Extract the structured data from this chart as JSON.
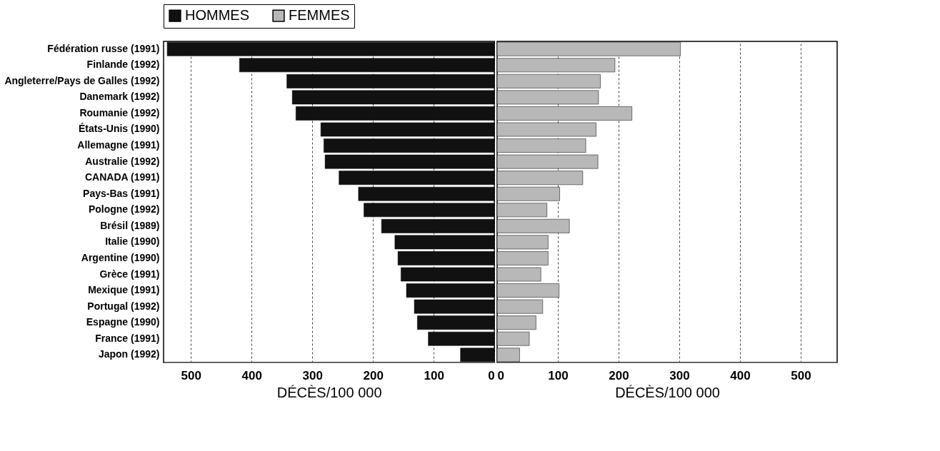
{
  "chart_data": [
    {
      "type": "bar",
      "orientation": "horizontal",
      "categories": [
        "Fédération russe (1991)",
        "Finlande (1992)",
        "Angleterre/Pays de Galles (1992)",
        "Danemark (1992)",
        "Roumanie (1992)",
        "États-Unis (1990)",
        "Allemagne (1991)",
        "Australie (1992)",
        "CANADA (1991)",
        "Pays-Bas (1991)",
        "Pologne (1992)",
        "Brésil (1989)",
        "Italie (1990)",
        "Argentine (1990)",
        "Grèce (1991)",
        "Mexique (1991)",
        "Portugal (1992)",
        "Espagne (1990)",
        "France (1991)",
        "Japon (1992)"
      ],
      "series": [
        {
          "name": "HOMMES",
          "color": "#111111",
          "values": [
            539,
            420,
            342,
            333,
            327,
            286,
            281,
            279,
            256,
            224,
            215,
            186,
            164,
            159,
            154,
            145,
            132,
            127,
            109,
            56
          ]
        }
      ],
      "xlim": [
        545,
        0
      ],
      "xticks": [
        500,
        400,
        300,
        200,
        100,
        0
      ],
      "xlabel": "DÉCÈS/100 000",
      "grid": "x",
      "legend": "top"
    },
    {
      "type": "bar",
      "orientation": "horizontal",
      "categories": [
        null,
        null,
        null,
        null,
        null,
        null,
        null,
        null,
        null,
        null,
        null,
        null,
        null,
        null,
        null,
        null,
        null,
        null,
        null,
        null
      ],
      "series": [
        {
          "name": "FEMMES",
          "color": "#b8b8b8",
          "values": [
            302,
            194,
            170,
            167,
            222,
            163,
            146,
            166,
            141,
            103,
            82,
            119,
            84,
            84,
            72,
            102,
            75,
            64,
            53,
            37
          ]
        }
      ],
      "xlim": [
        0,
        560
      ],
      "xticks": [
        0,
        100,
        200,
        300,
        400,
        500
      ],
      "xlabel": "DÉCÈS/100 000",
      "grid": "x",
      "legend": "top",
      "tick_labels": "x"
    }
  ]
}
